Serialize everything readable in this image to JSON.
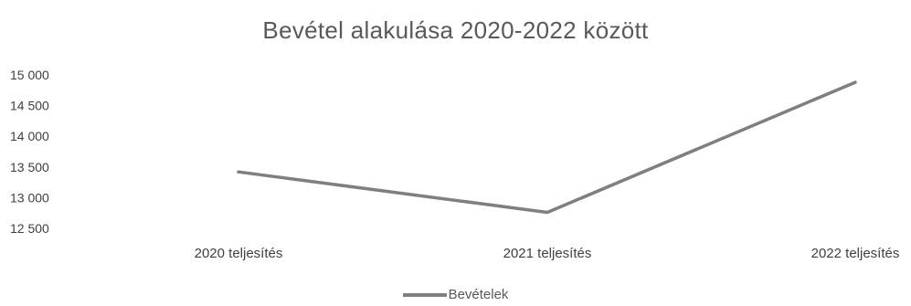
{
  "chart_data": {
    "type": "line",
    "title": "Bevétel alakulása 2020-2022 között",
    "xlabel": "",
    "ylabel": "",
    "categories": [
      "2020 teljesítés",
      "2021 teljesítés",
      "2022 teljesítés"
    ],
    "series": [
      {
        "name": "Bevételek",
        "values": [
          13420,
          12760,
          14880
        ],
        "color": "#7f7f7f"
      }
    ],
    "ylim": [
      12500,
      15000
    ],
    "y_ticks": [
      "12 500",
      "13 000",
      "13 500",
      "14 000",
      "14 500",
      "15 000"
    ],
    "y_tick_values": [
      12500,
      13000,
      13500,
      14000,
      14500,
      15000
    ],
    "grid": false,
    "legend": "bottom"
  }
}
